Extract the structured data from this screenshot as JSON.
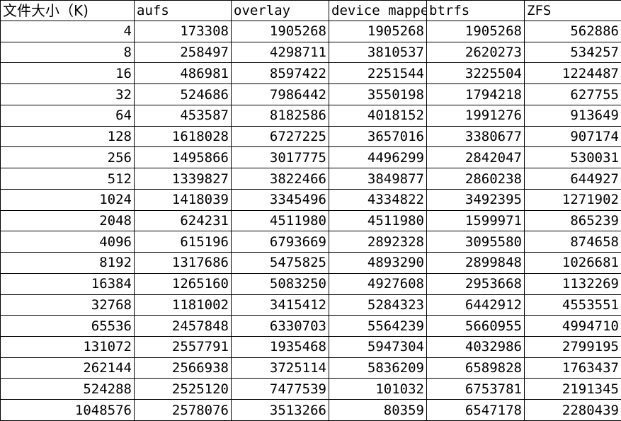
{
  "table": {
    "headers": [
      "文件大小（K)",
      "aufs",
      "overlay",
      "device mapper",
      "btrfs",
      "ZFS"
    ],
    "rows": [
      [
        "4",
        "173308",
        "1905268",
        "1905268",
        "1905268",
        "562886"
      ],
      [
        "8",
        "258497",
        "4298711",
        "3810537",
        "2620273",
        "534257"
      ],
      [
        "16",
        "486981",
        "8597422",
        "2251544",
        "3225504",
        "1224487"
      ],
      [
        "32",
        "524686",
        "7986442",
        "3550198",
        "1794218",
        "627755"
      ],
      [
        "64",
        "453587",
        "8182586",
        "4018152",
        "1991276",
        "913649"
      ],
      [
        "128",
        "1618028",
        "6727225",
        "3657016",
        "3380677",
        "907174"
      ],
      [
        "256",
        "1495866",
        "3017775",
        "4496299",
        "2842047",
        "530031"
      ],
      [
        "512",
        "1339827",
        "3822466",
        "3849877",
        "2860238",
        "644927"
      ],
      [
        "1024",
        "1418039",
        "3345496",
        "4334822",
        "3492395",
        "1271902"
      ],
      [
        "2048",
        "624231",
        "4511980",
        "4511980",
        "1599971",
        "865239"
      ],
      [
        "4096",
        "615196",
        "6793669",
        "2892328",
        "3095580",
        "874658"
      ],
      [
        "8192",
        "1317686",
        "5475825",
        "4893290",
        "2899848",
        "1026681"
      ],
      [
        "16384",
        "1265160",
        "5083250",
        "4927608",
        "2953668",
        "1132269"
      ],
      [
        "32768",
        "1181002",
        "3415412",
        "5284323",
        "6442912",
        "4553551"
      ],
      [
        "65536",
        "2457848",
        "6330703",
        "5564239",
        "5660955",
        "4994710"
      ],
      [
        "131072",
        "2557791",
        "1935468",
        "5947304",
        "4032986",
        "2799195"
      ],
      [
        "262144",
        "2566938",
        "3725114",
        "5836209",
        "6589828",
        "1763437"
      ],
      [
        "524288",
        "2525120",
        "7477539",
        "101032",
        "6753781",
        "2191345"
      ],
      [
        "1048576",
        "2578076",
        "3513266",
        "80359",
        "6547178",
        "2280439"
      ]
    ]
  }
}
